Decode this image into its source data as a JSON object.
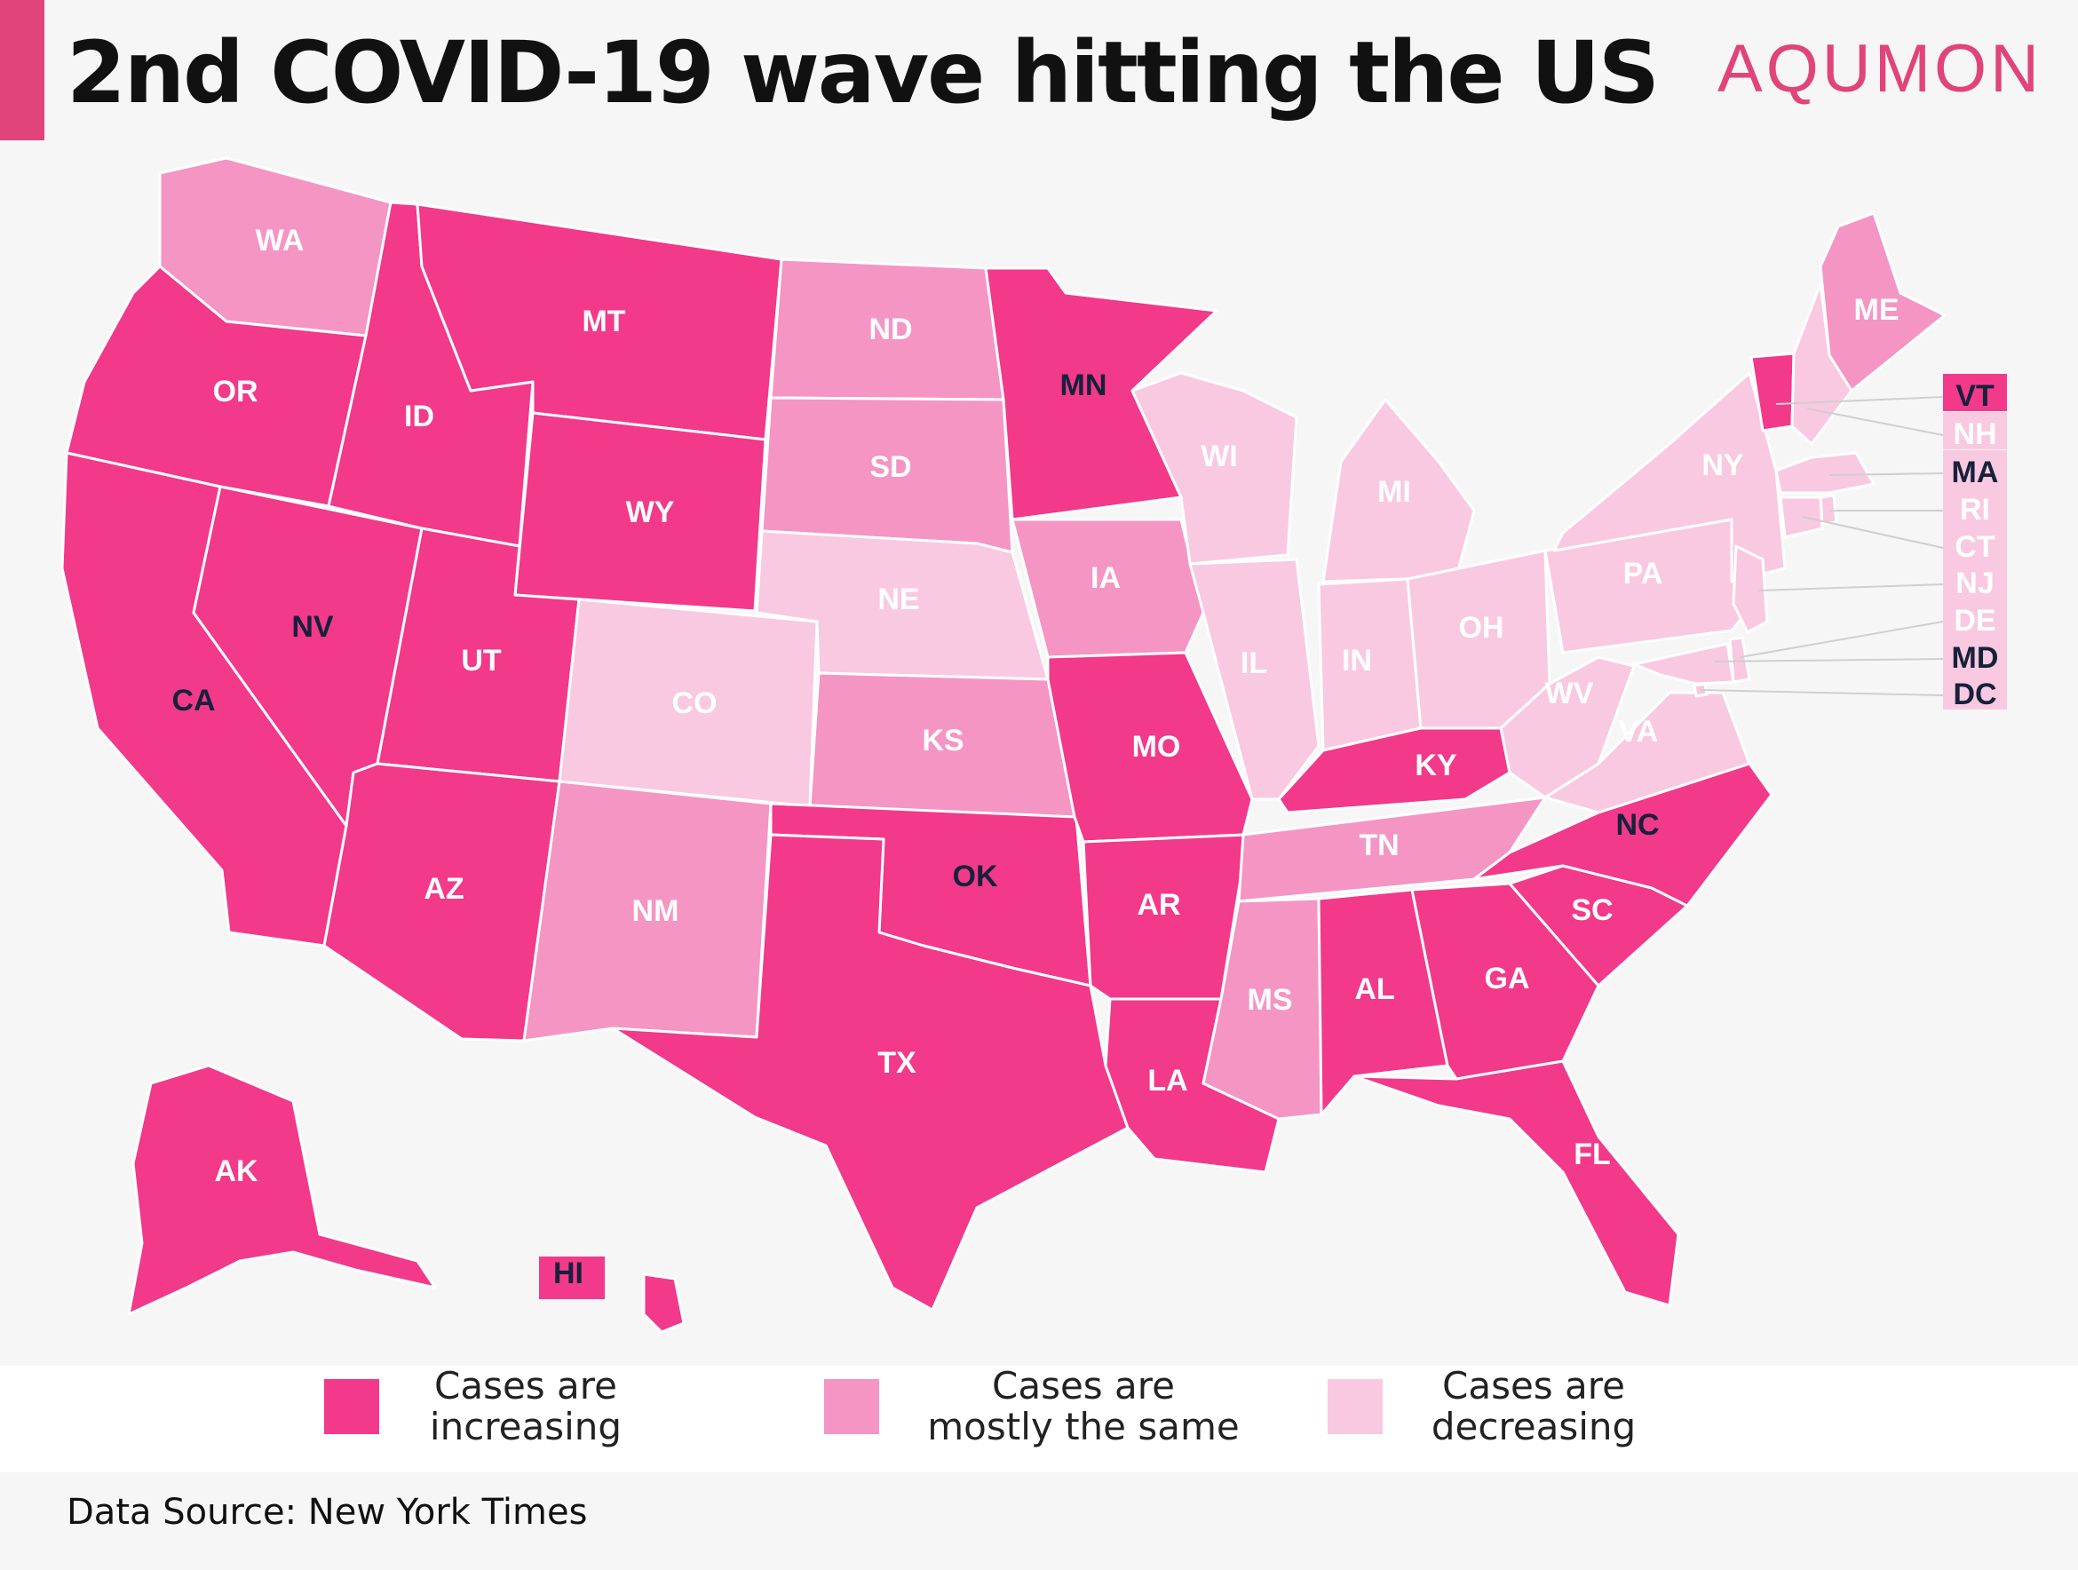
{
  "title": "2nd COVID-19 wave hitting the US",
  "brand": "AQUMON",
  "source": "Data Source: New York Times",
  "colors": {
    "increasing": "#f2398a",
    "same": "#f595c4",
    "decreasing": "#f9c9e1",
    "brand": "#e0447a",
    "dark_label": "#16213a"
  },
  "legend": [
    {
      "key": "increasing",
      "text": "Cases are increasing"
    },
    {
      "key": "same",
      "text": "Cases are mostly the same"
    },
    {
      "key": "decreasing",
      "text": "Cases are decreasing"
    }
  ],
  "states": [
    {
      "code": "WA",
      "status": "same"
    },
    {
      "code": "OR",
      "status": "increasing"
    },
    {
      "code": "CA",
      "status": "increasing"
    },
    {
      "code": "NV",
      "status": "increasing"
    },
    {
      "code": "ID",
      "status": "increasing"
    },
    {
      "code": "MT",
      "status": "increasing"
    },
    {
      "code": "WY",
      "status": "increasing"
    },
    {
      "code": "UT",
      "status": "increasing"
    },
    {
      "code": "AZ",
      "status": "increasing"
    },
    {
      "code": "CO",
      "status": "decreasing"
    },
    {
      "code": "NM",
      "status": "same"
    },
    {
      "code": "ND",
      "status": "same"
    },
    {
      "code": "SD",
      "status": "same"
    },
    {
      "code": "NE",
      "status": "decreasing"
    },
    {
      "code": "KS",
      "status": "same"
    },
    {
      "code": "OK",
      "status": "increasing"
    },
    {
      "code": "TX",
      "status": "increasing"
    },
    {
      "code": "MN",
      "status": "increasing"
    },
    {
      "code": "IA",
      "status": "same"
    },
    {
      "code": "MO",
      "status": "increasing"
    },
    {
      "code": "AR",
      "status": "increasing"
    },
    {
      "code": "LA",
      "status": "increasing"
    },
    {
      "code": "WI",
      "status": "decreasing"
    },
    {
      "code": "IL",
      "status": "decreasing"
    },
    {
      "code": "MI",
      "status": "decreasing"
    },
    {
      "code": "IN",
      "status": "decreasing"
    },
    {
      "code": "OH",
      "status": "decreasing"
    },
    {
      "code": "KY",
      "status": "increasing"
    },
    {
      "code": "TN",
      "status": "same"
    },
    {
      "code": "MS",
      "status": "same"
    },
    {
      "code": "AL",
      "status": "increasing"
    },
    {
      "code": "GA",
      "status": "increasing"
    },
    {
      "code": "FL",
      "status": "increasing"
    },
    {
      "code": "SC",
      "status": "increasing"
    },
    {
      "code": "NC",
      "status": "increasing"
    },
    {
      "code": "VA",
      "status": "decreasing"
    },
    {
      "code": "WV",
      "status": "decreasing"
    },
    {
      "code": "PA",
      "status": "decreasing"
    },
    {
      "code": "NY",
      "status": "decreasing"
    },
    {
      "code": "ME",
      "status": "same"
    },
    {
      "code": "AK",
      "status": "increasing"
    },
    {
      "code": "HI",
      "status": "increasing"
    },
    {
      "code": "VT",
      "status": "increasing"
    },
    {
      "code": "NH",
      "status": "decreasing"
    },
    {
      "code": "MA",
      "status": "decreasing"
    },
    {
      "code": "RI",
      "status": "decreasing"
    },
    {
      "code": "CT",
      "status": "decreasing"
    },
    {
      "code": "NJ",
      "status": "decreasing"
    },
    {
      "code": "DE",
      "status": "decreasing"
    },
    {
      "code": "MD",
      "status": "decreasing"
    },
    {
      "code": "DC",
      "status": "decreasing"
    }
  ]
}
